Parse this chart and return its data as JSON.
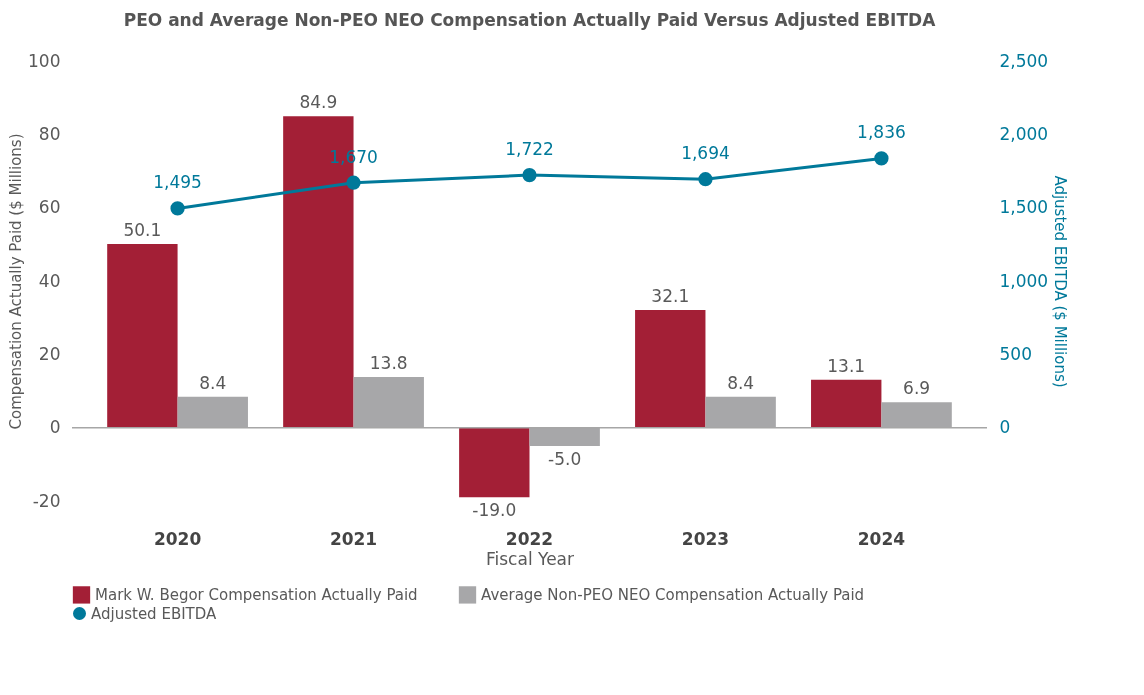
{
  "chart_data": {
    "type": "bar",
    "title": "PEO and Average Non-PEO NEO Compensation Actually Paid Versus Adjusted EBITDA",
    "xlabel": "Fiscal Year",
    "ylabel": "Compensation Actually Paid ($ Millions)",
    "y2label": "Adjusted EBITDA ($ Millions)",
    "categories": [
      "2020",
      "2021",
      "2022",
      "2023",
      "2024"
    ],
    "series": [
      {
        "name": "Mark W. Begor Compensation Actually Paid",
        "color": "#a31f36",
        "values": [
          50.1,
          84.9,
          -19.0,
          32.1,
          13.1
        ],
        "value_labels": [
          "50.1",
          "84.9",
          "-19.0",
          "32.1",
          "13.1"
        ]
      },
      {
        "name": "Average Non-PEO NEO Compensation Actually Paid",
        "color": "#a7a7a9",
        "values": [
          8.4,
          13.8,
          -5.0,
          8.4,
          6.9
        ],
        "value_labels": [
          "8.4",
          "13.8",
          "-5.0",
          "8.4",
          "6.9"
        ]
      },
      {
        "name": "Adjusted EBITDA",
        "type": "line",
        "axis": "y2",
        "color": "#00799a",
        "values": [
          1495,
          1670,
          1722,
          1694,
          1836
        ],
        "value_labels": [
          "1,495",
          "1,670",
          "1,722",
          "1,694",
          "1,836"
        ]
      }
    ],
    "ylim": [
      -20,
      100
    ],
    "yticks": [
      -20,
      0,
      20,
      40,
      60,
      80,
      100
    ],
    "y2lim": [
      -500,
      2500
    ],
    "y2ticks": [
      {
        "value": 0,
        "label": "0"
      },
      {
        "value": 500,
        "label": "500"
      },
      {
        "value": 1000,
        "label": "1,000"
      },
      {
        "value": 1500,
        "label": "1,500"
      },
      {
        "value": 2000,
        "label": "2,000"
      },
      {
        "value": 2500,
        "label": "2,500"
      }
    ],
    "ref_lines": [
      {
        "axis": "y",
        "value": 0,
        "color": "#a6a6a6"
      }
    ],
    "grid": false,
    "legend": "bottom",
    "marker": "circle",
    "line_style": "solid"
  }
}
